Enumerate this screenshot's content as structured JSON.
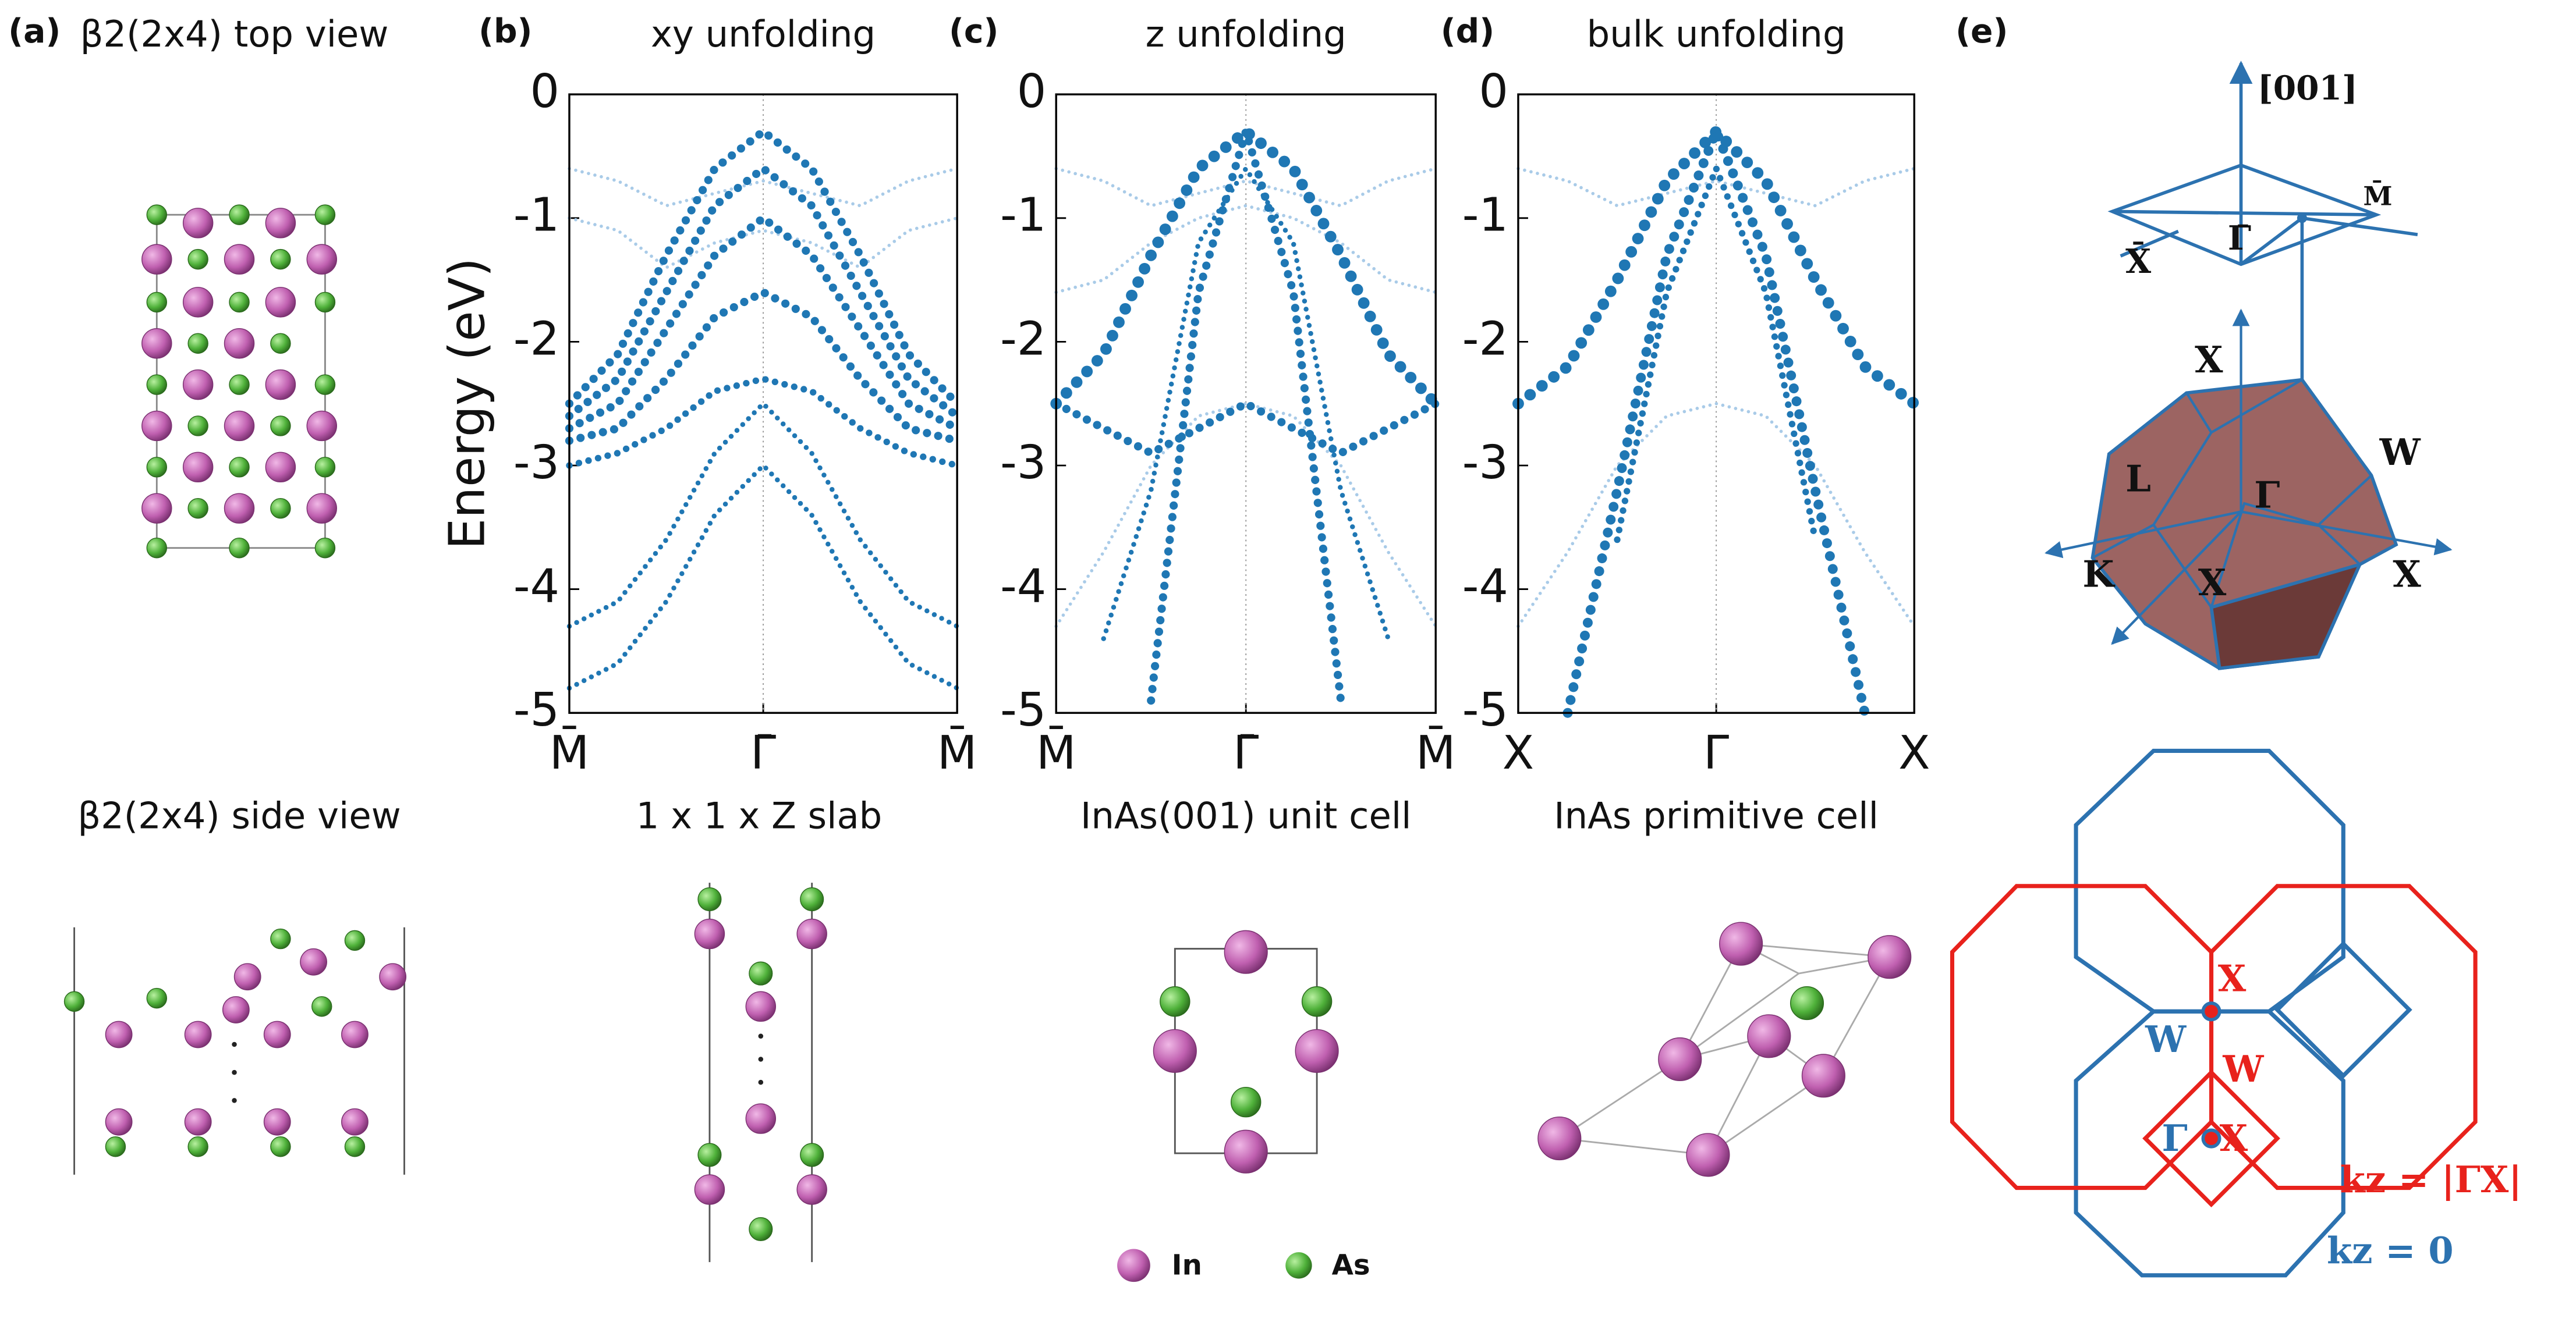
{
  "labels": {
    "a": "(a)",
    "b": "(b)",
    "c": "(c)",
    "d": "(d)",
    "e": "(e)"
  },
  "structures": {
    "top_view": "β2(2x4) top view",
    "side_view": "β2(2x4) side view",
    "slab": "1 x 1 x Z slab",
    "unit_cell": "InAs(001) unit cell",
    "primitive_cell": "InAs primitive cell"
  },
  "legend": {
    "in": "In",
    "as": "As"
  },
  "chart_data": [
    {
      "type": "line",
      "title": "xy unfolding",
      "ylabel": "Energy (eV)",
      "x": [
        -1,
        -0.75,
        -0.5,
        -0.25,
        0,
        0.25,
        0.5,
        0.75,
        1
      ],
      "xlim": [
        -1,
        1
      ],
      "xticks": [
        {
          "value": -1,
          "label": "M̄"
        },
        {
          "value": 0,
          "label": "Γ̄"
        },
        {
          "value": 1,
          "label": "M̄"
        }
      ],
      "ylim": [
        -5,
        0
      ],
      "yticks": [
        0,
        -1,
        -2,
        -3,
        -4,
        -5
      ],
      "series": [
        {
          "color": "#a9cbe8",
          "marker_size": 2,
          "values": [
            -0.6,
            -0.7,
            -0.9,
            -0.8,
            -0.7,
            -0.8,
            -0.9,
            -0.7,
            -0.6
          ]
        },
        {
          "color": "#a9cbe8",
          "marker_size": 2,
          "values": [
            -1.0,
            -1.1,
            -1.4,
            -1.2,
            -1.1,
            -1.2,
            -1.4,
            -1.1,
            -1.0
          ]
        },
        {
          "color": "#1f77b4",
          "marker_size": 5,
          "values": [
            -2.5,
            -2.1,
            -1.3,
            -0.6,
            -0.3,
            -0.6,
            -1.3,
            -2.1,
            -2.5
          ]
        },
        {
          "color": "#1f77b4",
          "marker_size": 5,
          "values": [
            -2.6,
            -2.3,
            -1.6,
            -0.9,
            -0.6,
            -0.9,
            -1.6,
            -2.3,
            -2.6
          ]
        },
        {
          "color": "#1f77b4",
          "marker_size": 5,
          "values": [
            -2.7,
            -2.5,
            -1.9,
            -1.3,
            -1.0,
            -1.3,
            -1.9,
            -2.5,
            -2.7
          ]
        },
        {
          "color": "#1f77b4",
          "marker_size": 5,
          "values": [
            -2.8,
            -2.7,
            -2.3,
            -1.8,
            -1.6,
            -1.8,
            -2.3,
            -2.7,
            -2.8
          ]
        },
        {
          "color": "#1f77b4",
          "marker_size": 4,
          "values": [
            -3.0,
            -2.9,
            -2.7,
            -2.4,
            -2.3,
            -2.4,
            -2.7,
            -2.9,
            -3.0
          ]
        },
        {
          "color": "#1f77b4",
          "marker_size": 3,
          "values": [
            -4.3,
            -4.1,
            -3.6,
            -2.9,
            -2.5,
            -2.9,
            -3.6,
            -4.1,
            -4.3
          ]
        },
        {
          "color": "#1f77b4",
          "marker_size": 3,
          "values": [
            -4.8,
            -4.6,
            -4.1,
            -3.4,
            -3.0,
            -3.4,
            -4.1,
            -4.6,
            -4.8
          ]
        }
      ]
    },
    {
      "type": "line",
      "title": "z unfolding",
      "x": [
        -1,
        -0.75,
        -0.5,
        -0.25,
        0,
        0.25,
        0.5,
        0.75,
        1
      ],
      "xlim": [
        -1,
        1
      ],
      "xticks": [
        {
          "value": -1,
          "label": "M̄"
        },
        {
          "value": 0,
          "label": "Γ̄"
        },
        {
          "value": 1,
          "label": "M̄"
        }
      ],
      "ylim": [
        -5,
        0
      ],
      "yticks": [
        0,
        -1,
        -2,
        -3,
        -4,
        -5
      ],
      "series": [
        {
          "color": "#a9cbe8",
          "marker_size": 2,
          "values": [
            -0.6,
            -0.7,
            -0.9,
            -0.8,
            -0.7,
            -0.8,
            -0.9,
            -0.7,
            -0.6
          ]
        },
        {
          "color": "#a9cbe8",
          "marker_size": 2,
          "values": [
            -1.6,
            -1.5,
            -1.2,
            -1.0,
            -0.9,
            -1.0,
            -1.2,
            -1.5,
            -1.6
          ]
        },
        {
          "color": "#a9cbe8",
          "marker_size": 2,
          "values": [
            -4.3,
            -3.7,
            -3.0,
            -2.6,
            -2.5,
            -2.6,
            -3.0,
            -3.7,
            -4.3
          ]
        },
        {
          "color": "#1f77b4",
          "marker_size": 7,
          "values": [
            -2.5,
            -2.1,
            -1.3,
            -0.6,
            -0.3,
            -0.6,
            -1.3,
            -2.1,
            -2.5
          ]
        },
        {
          "color": "#1f77b4",
          "marker_size": 5,
          "values": [
            -2.5,
            -2.7,
            -2.9,
            -2.7,
            -2.5,
            -2.7,
            -2.9,
            -2.7,
            -2.5
          ]
        },
        {
          "color": "#1f77b4",
          "marker_size": 5,
          "values": [
            null,
            null,
            -4.9,
            -1.6,
            -0.3,
            -1.6,
            -4.9,
            null,
            null
          ]
        },
        {
          "color": "#1f77b4",
          "marker_size": 3,
          "values": [
            null,
            -4.4,
            -3.2,
            -1.2,
            -0.6,
            -1.2,
            -3.2,
            -4.4,
            null
          ]
        }
      ]
    },
    {
      "type": "line",
      "title": "bulk unfolding",
      "x": [
        -1,
        -0.75,
        -0.5,
        -0.25,
        0,
        0.25,
        0.5,
        0.75,
        1
      ],
      "xlim": [
        -1,
        1
      ],
      "xticks": [
        {
          "value": -1,
          "label": "X"
        },
        {
          "value": 0,
          "label": "Γ"
        },
        {
          "value": 1,
          "label": "X"
        }
      ],
      "ylim": [
        -5,
        0
      ],
      "yticks": [
        0,
        -1,
        -2,
        -3,
        -4,
        -5
      ],
      "series": [
        {
          "color": "#a9cbe8",
          "marker_size": 2,
          "values": [
            -0.6,
            -0.7,
            -0.9,
            -0.8,
            -0.7,
            -0.8,
            -0.9,
            -0.7,
            -0.6
          ]
        },
        {
          "color": "#a9cbe8",
          "marker_size": 2,
          "values": [
            -4.3,
            -3.7,
            -3.0,
            -2.6,
            -2.5,
            -2.6,
            -3.0,
            -3.7,
            -4.3
          ]
        },
        {
          "color": "#1f77b4",
          "marker_size": 7,
          "values": [
            -2.5,
            -2.2,
            -1.5,
            -0.7,
            -0.3,
            -0.7,
            -1.5,
            -2.2,
            -2.5
          ]
        },
        {
          "color": "#1f77b4",
          "marker_size": 6,
          "values": [
            null,
            -5.0,
            -3.2,
            -1.3,
            -0.3,
            -1.3,
            -3.2,
            -5.0,
            null
          ]
        },
        {
          "color": "#1f77b4",
          "marker_size": 4,
          "values": [
            null,
            null,
            -3.6,
            -1.6,
            -0.6,
            -1.6,
            -3.6,
            null,
            null
          ]
        }
      ]
    }
  ],
  "brillouin": {
    "axis": "[001]",
    "m_bar": "M̄",
    "x_bar": "X̄",
    "gamma_bar": "Γ̄",
    "x_top": "X",
    "w": "W",
    "l": "L",
    "gamma": "Γ",
    "k": "K",
    "x_front": "X",
    "x_right": "X",
    "cut_x": "X",
    "cut_w_blue": "W",
    "cut_w_red": "W",
    "cut_gamma": "Γ",
    "cut_x2": "X",
    "kz_red": "kz = |ΓX|",
    "kz_blue": "kz = 0"
  }
}
